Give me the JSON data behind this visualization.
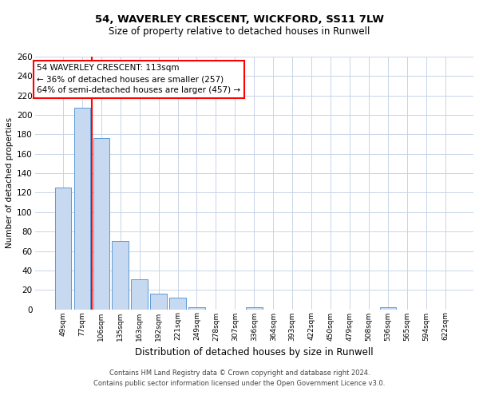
{
  "title1": "54, WAVERLEY CRESCENT, WICKFORD, SS11 7LW",
  "title2": "Size of property relative to detached houses in Runwell",
  "xlabel": "Distribution of detached houses by size in Runwell",
  "ylabel": "Number of detached properties",
  "categories": [
    "49sqm",
    "77sqm",
    "106sqm",
    "135sqm",
    "163sqm",
    "192sqm",
    "221sqm",
    "249sqm",
    "278sqm",
    "307sqm",
    "336sqm",
    "364sqm",
    "393sqm",
    "422sqm",
    "450sqm",
    "479sqm",
    "508sqm",
    "536sqm",
    "565sqm",
    "594sqm",
    "622sqm"
  ],
  "values": [
    125,
    207,
    176,
    70,
    31,
    16,
    12,
    2,
    0,
    0,
    2,
    0,
    0,
    0,
    0,
    0,
    0,
    2,
    0,
    0,
    0
  ],
  "bar_color": "#c6d9f0",
  "bar_edge_color": "#5b9bd5",
  "red_line_index": 2,
  "annotation_title": "54 WAVERLEY CRESCENT: 113sqm",
  "annotation_line1": "← 36% of detached houses are smaller (257)",
  "annotation_line2": "64% of semi-detached houses are larger (457) →",
  "annotation_box_color": "#ffffff",
  "annotation_box_edge": "#ff0000",
  "ylim": [
    0,
    260
  ],
  "yticks": [
    0,
    20,
    40,
    60,
    80,
    100,
    120,
    140,
    160,
    180,
    200,
    220,
    240,
    260
  ],
  "footer1": "Contains HM Land Registry data © Crown copyright and database right 2024.",
  "footer2": "Contains public sector information licensed under the Open Government Licence v3.0.",
  "background_color": "#ffffff",
  "grid_color": "#c8d4e8",
  "title1_fontsize": 9.5,
  "title2_fontsize": 8.5,
  "xlabel_fontsize": 8.5,
  "ylabel_fontsize": 7.5,
  "xtick_fontsize": 6.5,
  "ytick_fontsize": 7.5,
  "annotation_fontsize": 7.5,
  "footer_fontsize": 6.0
}
